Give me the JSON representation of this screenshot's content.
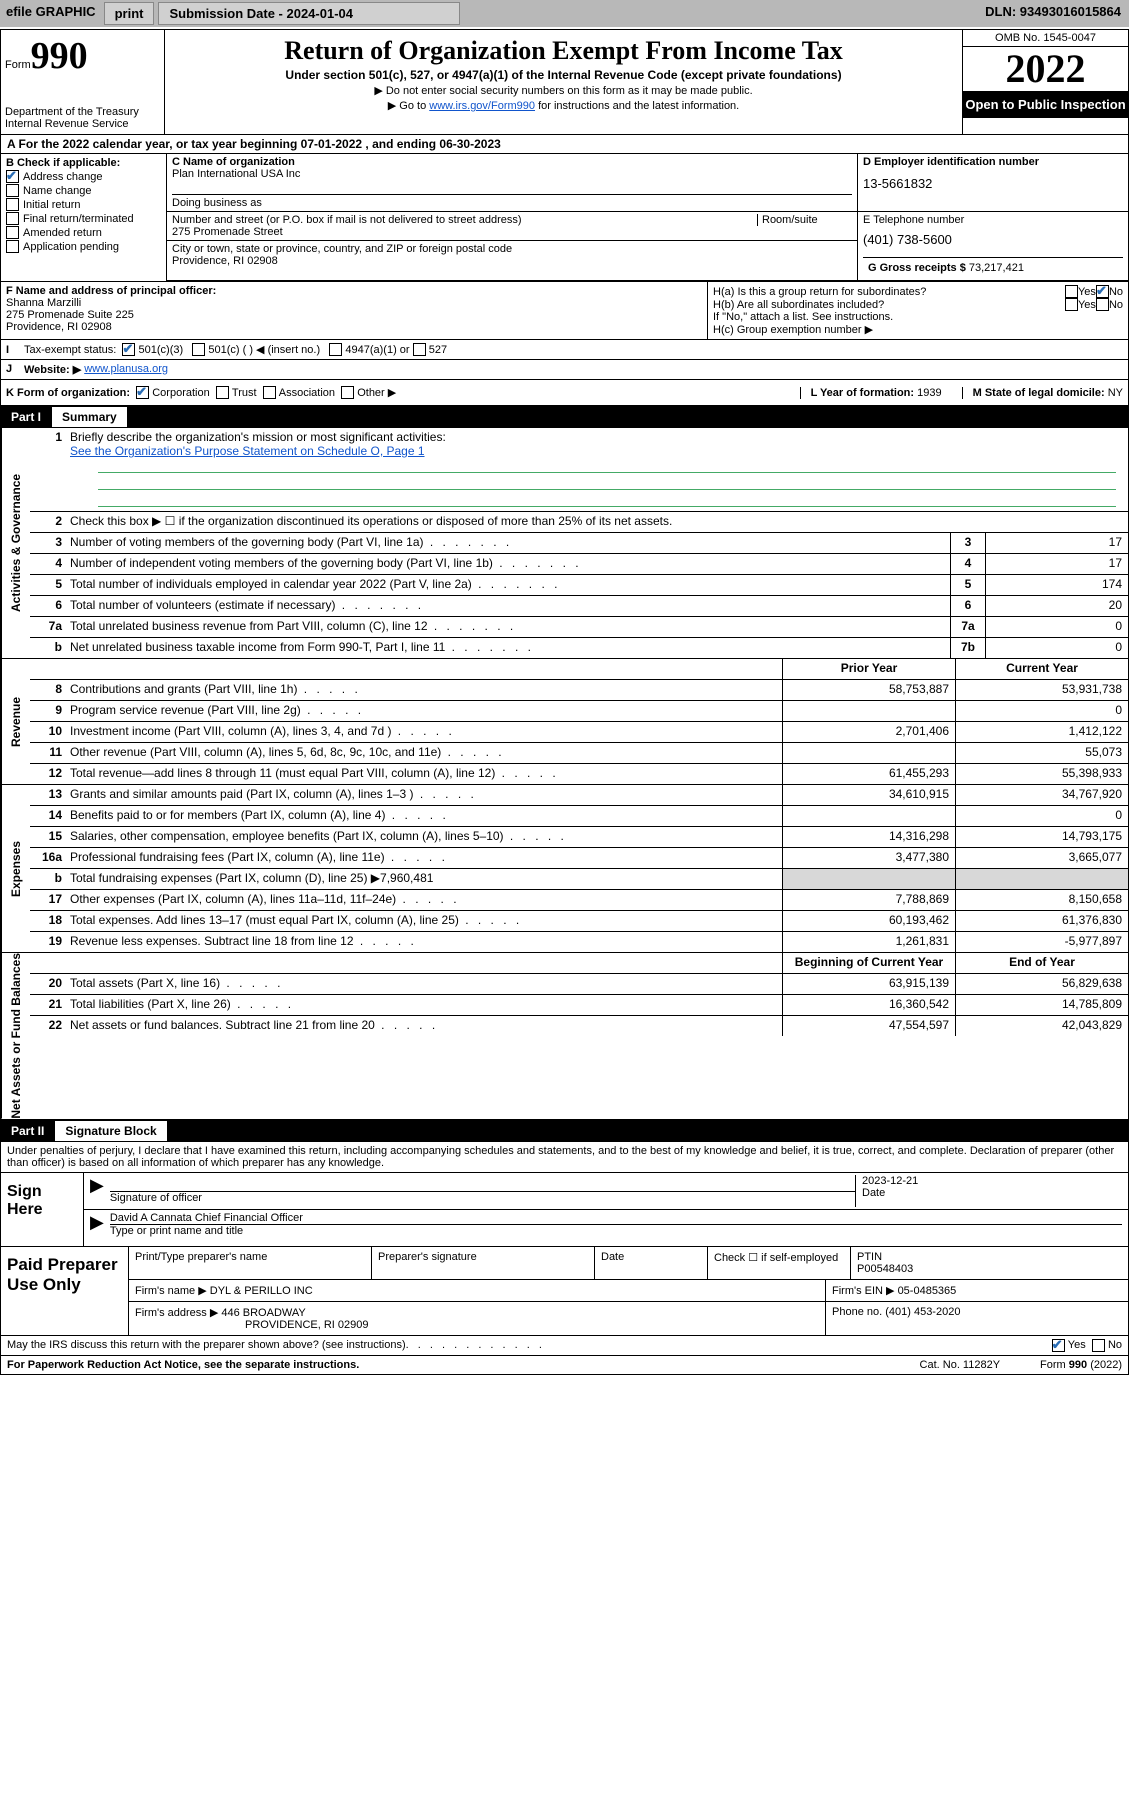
{
  "topbar": {
    "efile_label": "efile GRAPHIC",
    "print_btn": "print",
    "submission_label": "Submission Date - 2024-01-04",
    "dln_label": "DLN: 93493016015864"
  },
  "header": {
    "form_label": "Form",
    "form_number": "990",
    "dept": "Department of the Treasury",
    "irs": "Internal Revenue Service",
    "title": "Return of Organization Exempt From Income Tax",
    "subtitle": "Under section 501(c), 527, or 4947(a)(1) of the Internal Revenue Code (except private foundations)",
    "note1": "▶ Do not enter social security numbers on this form as it may be made public.",
    "note2_pre": "▶ Go to ",
    "note2_link": "www.irs.gov/Form990",
    "note2_post": " for instructions and the latest information.",
    "omb": "OMB No. 1545-0047",
    "year": "2022",
    "open_public": "Open to Public Inspection"
  },
  "row_a": {
    "label": "A For the 2022 calendar year, or tax year beginning ",
    "begin": "07-01-2022",
    "mid": " , and ending ",
    "end": "06-30-2023"
  },
  "section_b": {
    "title": "B Check if applicable:",
    "items": [
      {
        "label": "Address change",
        "checked": true
      },
      {
        "label": "Name change",
        "checked": false
      },
      {
        "label": "Initial return",
        "checked": false
      },
      {
        "label": "Final return/terminated",
        "checked": false
      },
      {
        "label": "Amended return",
        "checked": false
      },
      {
        "label": "Application pending",
        "checked": false
      }
    ]
  },
  "section_c": {
    "name_label": "C Name of organization",
    "name": "Plan International USA Inc",
    "dba_label": "Doing business as",
    "dba": "",
    "street_label": "Number and street (or P.O. box if mail is not delivered to street address)",
    "room_label": "Room/suite",
    "street": "275 Promenade Street",
    "city_label": "City or town, state or province, country, and ZIP or foreign postal code",
    "city": "Providence, RI  02908"
  },
  "section_d": {
    "label": "D Employer identification number",
    "value": "13-5661832"
  },
  "section_e": {
    "label": "E Telephone number",
    "value": "(401) 738-5600"
  },
  "section_g": {
    "label": "G Gross receipts $",
    "value": "73,217,421"
  },
  "section_f": {
    "label": "F Name and address of principal officer:",
    "name": "Shanna Marzilli",
    "addr1": "275 Promenade Suite 225",
    "addr2": "Providence, RI  02908"
  },
  "section_h": {
    "ha_label": "H(a)  Is this a group return for subordinates?",
    "ha_yes": "Yes",
    "ha_no": "No",
    "ha_checked": "no",
    "hb_label": "H(b)  Are all subordinates included?",
    "hb_yes": "Yes",
    "hb_no": "No",
    "hb_note": "If \"No,\" attach a list. See instructions.",
    "hc_label": "H(c)  Group exemption number ▶"
  },
  "row_i": {
    "label": "I",
    "title": "Tax-exempt status:",
    "opt1": "501(c)(3)",
    "opt2": "501(c) (   ) ◀ (insert no.)",
    "opt3": "4947(a)(1) or",
    "opt4": "527"
  },
  "row_j": {
    "label": "J",
    "title": "Website: ▶",
    "value": "www.planusa.org"
  },
  "row_k": {
    "label": "K Form of organization:",
    "opts": [
      "Corporation",
      "Trust",
      "Association",
      "Other ▶"
    ],
    "checked_idx": 0,
    "l_label": "L Year of formation:",
    "l_value": "1939",
    "m_label": "M State of legal domicile:",
    "m_value": "NY"
  },
  "part1": {
    "header_num": "Part I",
    "header_title": "Summary",
    "sections": [
      {
        "vtab": "Activities & Governance",
        "rows": [
          {
            "num": "1",
            "desc": "Briefly describe the organization's mission or most significant activities:",
            "type": "mission",
            "link": "See the Organization's Purpose Statement on Schedule O, Page 1"
          },
          {
            "num": "2",
            "desc": "Check this box ▶ ☐  if the organization discontinued its operations or disposed of more than 25% of its net assets.",
            "type": "plain"
          },
          {
            "num": "3",
            "desc": "Number of voting members of the governing body (Part VI, line 1a)",
            "box": "3",
            "val": "17"
          },
          {
            "num": "4",
            "desc": "Number of independent voting members of the governing body (Part VI, line 1b)",
            "box": "4",
            "val": "17"
          },
          {
            "num": "5",
            "desc": "Total number of individuals employed in calendar year 2022 (Part V, line 2a)",
            "box": "5",
            "val": "174"
          },
          {
            "num": "6",
            "desc": "Total number of volunteers (estimate if necessary)",
            "box": "6",
            "val": "20"
          },
          {
            "num": "7a",
            "desc": "Total unrelated business revenue from Part VIII, column (C), line 12",
            "box": "7a",
            "val": "0"
          },
          {
            "num": "b",
            "desc": "Net unrelated business taxable income from Form 990-T, Part I, line 11",
            "box": "7b",
            "val": "0"
          }
        ]
      },
      {
        "vtab": "Revenue",
        "header": {
          "prior": "Prior Year",
          "current": "Current Year"
        },
        "rows": [
          {
            "num": "8",
            "desc": "Contributions and grants (Part VIII, line 1h)",
            "prior": "58,753,887",
            "current": "53,931,738"
          },
          {
            "num": "9",
            "desc": "Program service revenue (Part VIII, line 2g)",
            "prior": "",
            "current": "0"
          },
          {
            "num": "10",
            "desc": "Investment income (Part VIII, column (A), lines 3, 4, and 7d )",
            "prior": "2,701,406",
            "current": "1,412,122"
          },
          {
            "num": "11",
            "desc": "Other revenue (Part VIII, column (A), lines 5, 6d, 8c, 9c, 10c, and 11e)",
            "prior": "",
            "current": "55,073"
          },
          {
            "num": "12",
            "desc": "Total revenue—add lines 8 through 11 (must equal Part VIII, column (A), line 12)",
            "prior": "61,455,293",
            "current": "55,398,933"
          }
        ]
      },
      {
        "vtab": "Expenses",
        "rows": [
          {
            "num": "13",
            "desc": "Grants and similar amounts paid (Part IX, column (A), lines 1–3 )",
            "prior": "34,610,915",
            "current": "34,767,920"
          },
          {
            "num": "14",
            "desc": "Benefits paid to or for members (Part IX, column (A), line 4)",
            "prior": "",
            "current": "0"
          },
          {
            "num": "15",
            "desc": "Salaries, other compensation, employee benefits (Part IX, column (A), lines 5–10)",
            "prior": "14,316,298",
            "current": "14,793,175"
          },
          {
            "num": "16a",
            "desc": "Professional fundraising fees (Part IX, column (A), line 11e)",
            "prior": "3,477,380",
            "current": "3,665,077"
          },
          {
            "num": "b",
            "desc": "Total fundraising expenses (Part IX, column (D), line 25) ▶7,960,481",
            "type": "noboxes"
          },
          {
            "num": "17",
            "desc": "Other expenses (Part IX, column (A), lines 11a–11d, 11f–24e)",
            "prior": "7,788,869",
            "current": "8,150,658"
          },
          {
            "num": "18",
            "desc": "Total expenses. Add lines 13–17 (must equal Part IX, column (A), line 25)",
            "prior": "60,193,462",
            "current": "61,376,830"
          },
          {
            "num": "19",
            "desc": "Revenue less expenses. Subtract line 18 from line 12",
            "prior": "1,261,831",
            "current": "-5,977,897"
          }
        ]
      },
      {
        "vtab": "Net Assets or Fund Balances",
        "header": {
          "prior": "Beginning of Current Year",
          "current": "End of Year"
        },
        "rows": [
          {
            "num": "20",
            "desc": "Total assets (Part X, line 16)",
            "prior": "63,915,139",
            "current": "56,829,638"
          },
          {
            "num": "21",
            "desc": "Total liabilities (Part X, line 26)",
            "prior": "16,360,542",
            "current": "14,785,809"
          },
          {
            "num": "22",
            "desc": "Net assets or fund balances. Subtract line 21 from line 20",
            "prior": "47,554,597",
            "current": "42,043,829"
          }
        ]
      }
    ]
  },
  "part2": {
    "header_num": "Part II",
    "header_title": "Signature Block",
    "penalties": "Under penalties of perjury, I declare that I have examined this return, including accompanying schedules and statements, and to the best of my knowledge and belief, it is true, correct, and complete. Declaration of preparer (other than officer) is based on all information of which preparer has any knowledge.",
    "sign_here": "Sign Here",
    "sig_officer_label": "Signature of officer",
    "sig_date": "2023-12-21",
    "date_label": "Date",
    "officer_name": "David A Cannata  Chief Financial Officer",
    "officer_name_label": "Type or print name and title",
    "prep_label": "Paid Preparer Use Only",
    "prep_cols": [
      "Print/Type preparer's name",
      "Preparer's signature",
      "Date"
    ],
    "prep_check": "Check ☐ if self-employed",
    "ptin_label": "PTIN",
    "ptin": "P00548403",
    "firm_name_label": "Firm's name    ▶",
    "firm_name": "DYL & PERILLO INC",
    "firm_ein_label": "Firm's EIN ▶",
    "firm_ein": "05-0485365",
    "firm_addr_label": "Firm's address ▶",
    "firm_addr1": "446 BROADWAY",
    "firm_addr2": "PROVIDENCE, RI  02909",
    "firm_phone_label": "Phone no.",
    "firm_phone": "(401) 453-2020",
    "discuss": "May the IRS discuss this return with the preparer shown above? (see instructions)",
    "discuss_yes": "Yes",
    "discuss_no": "No",
    "paperwork": "For Paperwork Reduction Act Notice, see the separate instructions.",
    "catno": "Cat. No. 11282Y",
    "formfoot": "Form 990 (2022)"
  },
  "colors": {
    "topbar_bg": "#b8b8b8",
    "btn_bg": "#d0d0d0",
    "link": "#1155cc",
    "check": "#2a6db5"
  }
}
